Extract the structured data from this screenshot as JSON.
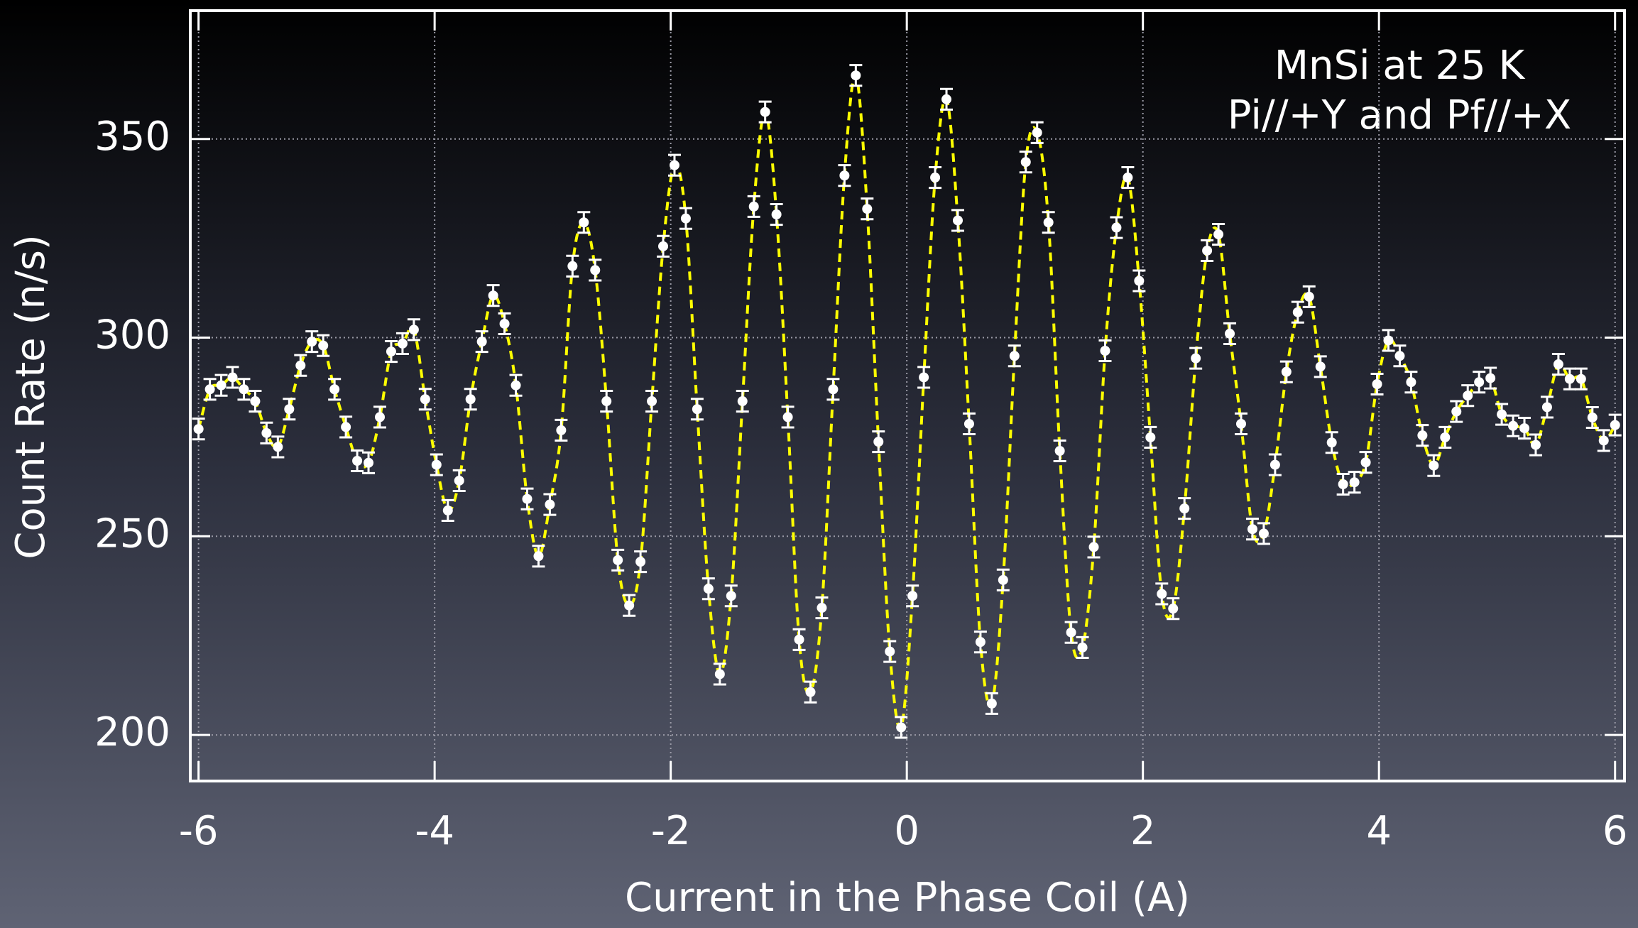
{
  "chart_data": {
    "type": "scatter",
    "x_label": "Current in the Phase Coil (A)",
    "y_label": "Count Rate (n/s)",
    "annotations": [
      "MnSi at 25 K",
      "Pi//+Y and Pf//+X"
    ],
    "x": [
      -6,
      -5.904,
      -5.808,
      -5.712,
      -5.616,
      -5.52,
      -5.424,
      -5.328,
      -5.232,
      -5.136,
      -5.04,
      -4.944,
      -4.848,
      -4.752,
      -4.656,
      -4.56,
      -4.464,
      -4.368,
      -4.272,
      -4.176,
      -4.08,
      -3.984,
      -3.888,
      -3.792,
      -3.696,
      -3.6,
      -3.504,
      -3.408,
      -3.312,
      -3.216,
      -3.12,
      -3.024,
      -2.928,
      -2.832,
      -2.736,
      -2.64,
      -2.544,
      -2.448,
      -2.352,
      -2.256,
      -2.16,
      -2.064,
      -1.968,
      -1.872,
      -1.776,
      -1.68,
      -1.584,
      -1.488,
      -1.392,
      -1.296,
      -1.2,
      -1.104,
      -1.008,
      -0.912,
      -0.816,
      -0.72,
      -0.624,
      -0.528,
      -0.432,
      -0.336,
      -0.24,
      -0.144,
      -0.048,
      0.048,
      0.144,
      0.24,
      0.336,
      0.432,
      0.528,
      0.624,
      0.72,
      0.816,
      0.912,
      1.008,
      1.104,
      1.2,
      1.296,
      1.392,
      1.488,
      1.584,
      1.68,
      1.776,
      1.872,
      1.968,
      2.064,
      2.16,
      2.256,
      2.352,
      2.448,
      2.544,
      2.64,
      2.736,
      2.832,
      2.928,
      3.024,
      3.12,
      3.216,
      3.312,
      3.408,
      3.504,
      3.6,
      3.696,
      3.792,
      3.888,
      3.984,
      4.08,
      4.176,
      4.272,
      4.368,
      4.464,
      4.56,
      4.656,
      4.752,
      4.848,
      4.944,
      5.04,
      5.136,
      5.232,
      5.328,
      5.424,
      5.52,
      5.616,
      5.712,
      5.808,
      5.904,
      6
    ],
    "series": [
      {
        "color": "#ffffff",
        "values": [
          277,
          287,
          288,
          290,
          287,
          284,
          276,
          272.5,
          282,
          293,
          299,
          298,
          287,
          277.5,
          269,
          268.5,
          280,
          296.5,
          298.5,
          302,
          284.5,
          268,
          256.5,
          264,
          284.5,
          299,
          310.6,
          303.5,
          288,
          259.4,
          245,
          258,
          276.7,
          318,
          329,
          317,
          284,
          244,
          232.6,
          243.6,
          284,
          323,
          343.4,
          330,
          282,
          236.8,
          215.3,
          235,
          284,
          333,
          356.8,
          331,
          280,
          224,
          210.8,
          232,
          287,
          340.8,
          366,
          332.4,
          273.8,
          221,
          201.9,
          235,
          290,
          340.3,
          360,
          329.5,
          278.3,
          223.4,
          207.9,
          239,
          295.4,
          344.2,
          351.6,
          329,
          271.5,
          225.8,
          222,
          247.3,
          296.7,
          327.7,
          340.3,
          314.3,
          274.9,
          235.5,
          231.8,
          257,
          294.8,
          321.9,
          326,
          301,
          278.3,
          251.8,
          250.7,
          268,
          291.4,
          306.4,
          310.3,
          292.7,
          273.6,
          263.1,
          263.6,
          268.6,
          288.3,
          299.3,
          295.4,
          288.8,
          275.4,
          267.8,
          274.9,
          281.4,
          285.4,
          288.8,
          289.8,
          280.7,
          277.8,
          277.2,
          273,
          282.5,
          293.3,
          289.6,
          289.6,
          279.9,
          274.1,
          278
        ],
        "error": 2.6,
        "fit_line": {
          "color": "#ffff00",
          "style": "dashed"
        }
      }
    ],
    "xlim": [
      -6.07,
      6.08
    ],
    "ylim": [
      188.4,
      382.3
    ],
    "xticks": [
      -6,
      -4,
      -2,
      0,
      2,
      4,
      6
    ],
    "yticks": [
      200,
      250,
      300,
      350
    ],
    "grid": true
  }
}
